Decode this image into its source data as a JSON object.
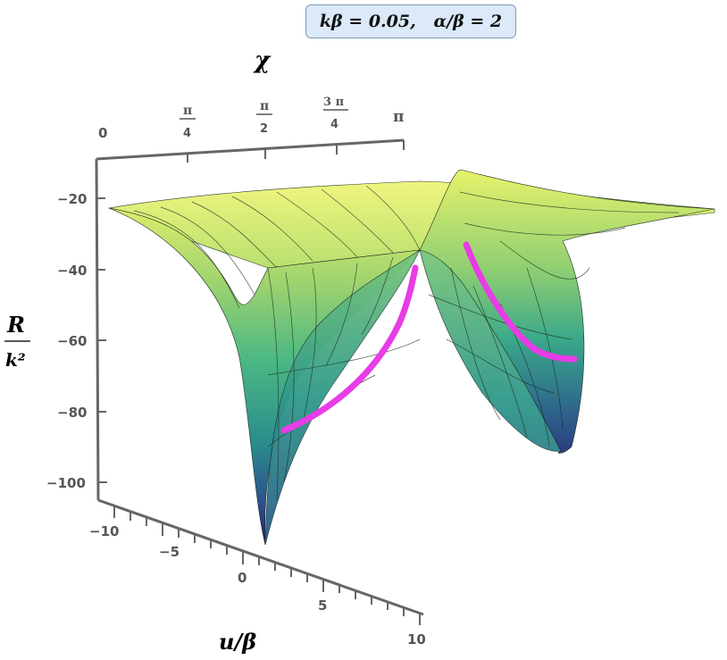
{
  "parameters_label": "kβ = 0.05,   α/β = 2",
  "axes": {
    "chi_label": "χ",
    "chi_ticks": [
      "0",
      "π",
      "4",
      "π",
      "2",
      "3 π",
      "4",
      "π"
    ],
    "r_label_num": "R",
    "r_label_den": "k²",
    "r_ticks": [
      "−20",
      "−40",
      "−60",
      "−80",
      "−100"
    ],
    "u_label": "u/β",
    "u_ticks": [
      "−10",
      "−5",
      "0",
      "5",
      "10"
    ]
  },
  "colors": {
    "surface_high": "#e8f26a",
    "surface_mid": "#3fae8a",
    "surface_low": "#2b1f78",
    "curve": "#e83ce6",
    "axis": "#666666"
  },
  "chart_data": {
    "type": "surface3d",
    "x_variable": "u/β",
    "y_variable": "χ",
    "z_variable": "R/k²",
    "xlim": [
      -10,
      10
    ],
    "ylim": [
      0,
      3.1416
    ],
    "zlim": [
      -105,
      -15
    ],
    "x_ticks": [
      -10,
      -5,
      0,
      5,
      10
    ],
    "y_ticks": [
      "0",
      "π/4",
      "π/2",
      "3π/4",
      "π"
    ],
    "z_ticks": [
      -20,
      -40,
      -60,
      -80,
      -100
    ],
    "surface_samples": [
      {
        "u": 0,
        "chi": 0,
        "R": -103
      },
      {
        "u": 0,
        "chi": 0.785,
        "R": -80
      },
      {
        "u": 0,
        "chi": 1.571,
        "R": -35
      },
      {
        "u": 0,
        "chi": 2.356,
        "R": -80
      },
      {
        "u": 0,
        "chi": 3.1416,
        "R": -93
      },
      {
        "u": -10,
        "chi": 0,
        "R": -22
      },
      {
        "u": 10,
        "chi": 3.1416,
        "R": -22
      }
    ],
    "highlight_curves": [
      {
        "color": "#e83ce6",
        "points": [
          {
            "R": -85
          },
          {
            "R": -60
          },
          {
            "R": -35
          }
        ]
      },
      {
        "color": "#e83ce6",
        "points": [
          {
            "R": -35
          },
          {
            "R": -55
          },
          {
            "R": -65
          }
        ]
      }
    ]
  }
}
